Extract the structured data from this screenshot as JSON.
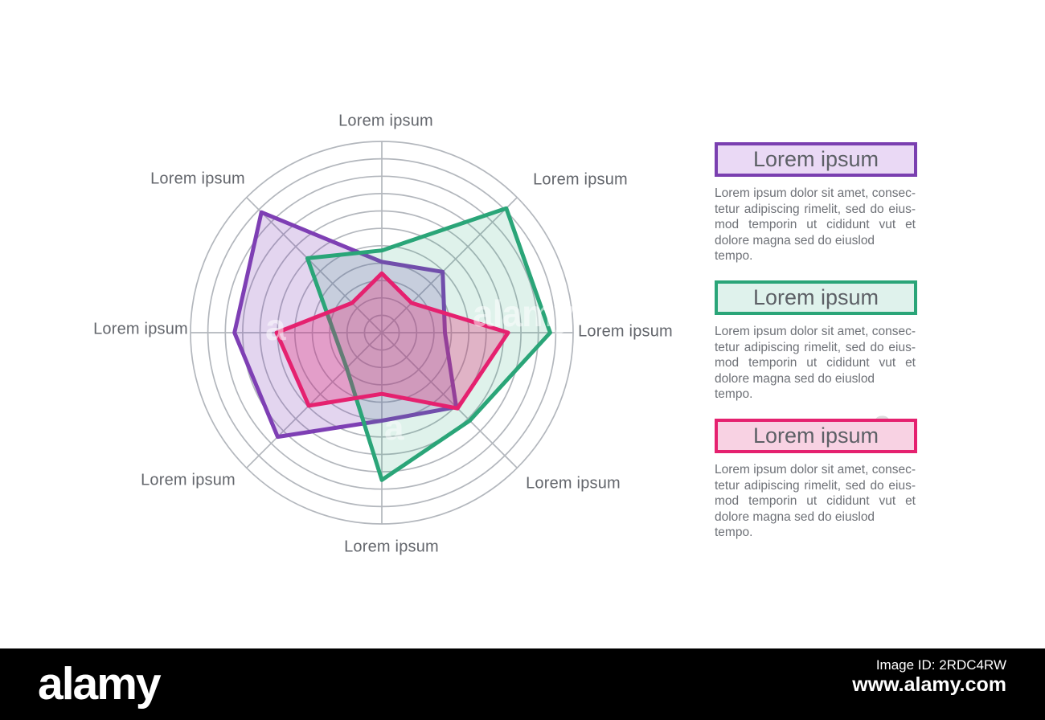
{
  "chart_data": {
    "type": "radar",
    "title": "",
    "axes": [
      "Lorem ipsum",
      "Lorem ipsum",
      "Lorem ipsum",
      "Lorem ipsum",
      "Lorem ipsum",
      "Lorem ipsum",
      "Lorem ipsum",
      "Lorem ipsum"
    ],
    "axes_order_note": "starting at top, clockwise",
    "rings": 11,
    "value_range": [
      0,
      100
    ],
    "grid_color": "#b3b7bd",
    "series": [
      {
        "name": "series-purple",
        "label": "Lorem ipsum",
        "color": "#7e3fb4",
        "fill_opacity": 0.22,
        "values": [
          37,
          45,
          33,
          55,
          46,
          77,
          77,
          89
        ]
      },
      {
        "name": "series-green",
        "label": "Lorem ipsum",
        "color": "#2aa578",
        "fill_opacity": 0.15,
        "values": [
          43,
          92,
          88,
          65,
          77,
          26,
          25,
          55
        ]
      },
      {
        "name": "series-pink",
        "label": "Lorem ipsum",
        "color": "#e5216f",
        "fill_opacity": 0.3,
        "values": [
          31,
          22,
          66,
          56,
          32,
          54,
          55,
          22
        ]
      }
    ]
  },
  "legend": {
    "cards": [
      {
        "title": "Lorem ipsum",
        "accent": "#7a3fb0",
        "fill": "#ead9f5",
        "body_lines": [
          "Lorem ipsum dolor sit amet, consec-",
          "tetur adipiscing rimelit, sed do eius-",
          "mod temporin ut cididunt vut et",
          "dolore magna sed do eiuslod tempo."
        ]
      },
      {
        "title": "Lorem ipsum",
        "accent": "#2aa578",
        "fill": "#dff2ec",
        "body_lines": [
          "Lorem ipsum dolor sit amet, consec-",
          "tetur adipiscing rimelit, sed do eius-",
          "mod temporin ut cididunt vut et",
          "dolore magna sed do eiuslod tempo."
        ]
      },
      {
        "title": "Lorem ipsum",
        "accent": "#e5216f",
        "fill": "#f8d2e3",
        "body_lines": [
          "Lorem ipsum dolor sit amet, consec-",
          "tetur adipiscing rimelit, sed do eius-",
          "mod temporin ut cididunt vut et",
          "dolore magna sed do eiuslod tempo."
        ]
      }
    ]
  },
  "watermark": {
    "ghost_word": "alamy",
    "ghost_letter": "a"
  },
  "footer": {
    "logo": "alamy",
    "image_id": "Image ID: 2RDC4RW",
    "url": "www.alamy.com"
  }
}
